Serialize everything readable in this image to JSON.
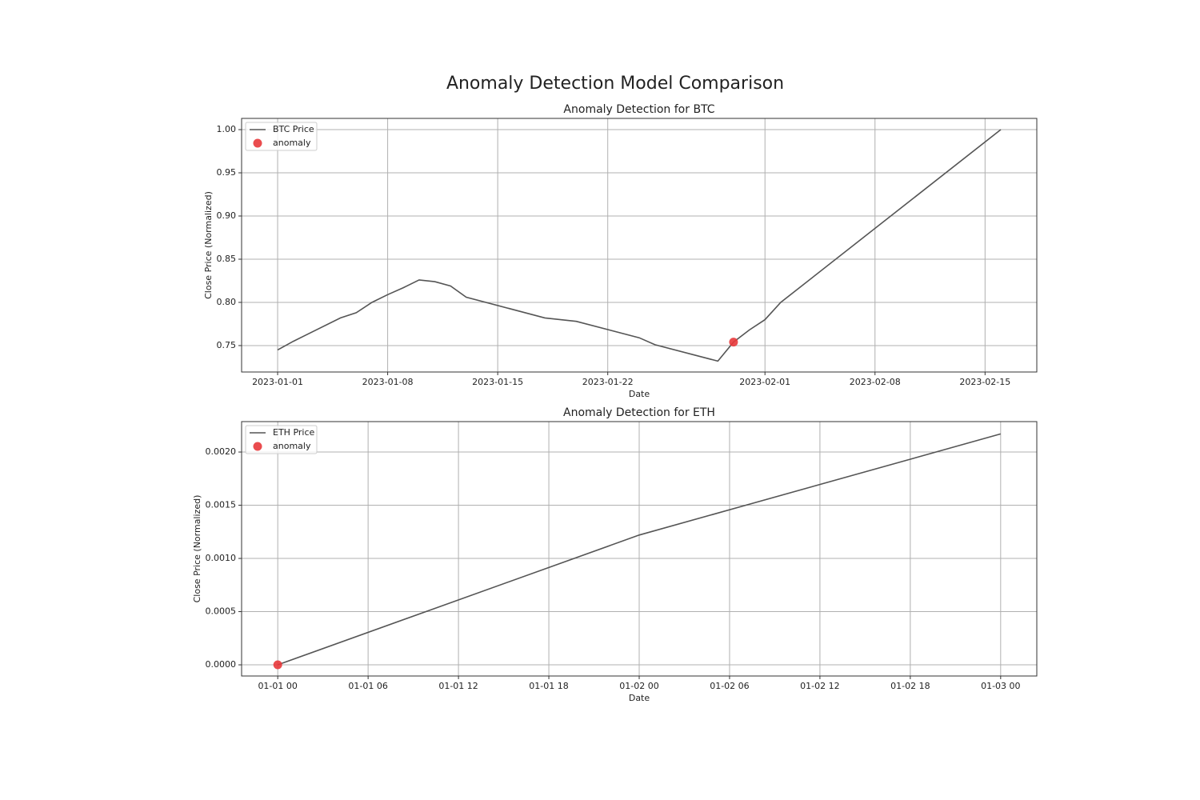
{
  "title": "Anomaly Detection Model Comparison",
  "chart_data": [
    {
      "type": "line",
      "title": "Anomaly Detection for BTC",
      "x_label": "Date",
      "y_label": "Close Price (Normalized)",
      "xlim": [
        "2022-12-29 17:00",
        "2023-02-18 07:00"
      ],
      "xticks": [
        "2023-01-01",
        "2023-01-08",
        "2023-01-15",
        "2023-01-22",
        "2023-02-01",
        "2023-02-08",
        "2023-02-15"
      ],
      "ylim": [
        0.7194,
        1.013
      ],
      "yticks": [
        0.75,
        {
          "value": 0.8,
          "label": "0.80"
        },
        0.85,
        {
          "value": 0.9,
          "label": "0.90"
        },
        0.95,
        {
          "value": 1,
          "label": "1.00"
        }
      ],
      "grid": true,
      "legend": "upper left",
      "series": [
        {
          "name": "BTC Price",
          "type": "line",
          "color": "#555555",
          "x": [
            "2023-01-01",
            "2023-01-02",
            "2023-01-05",
            "2023-01-06",
            "2023-01-07",
            "2023-01-08",
            "2023-01-09",
            "2023-01-10",
            "2023-01-11",
            "2023-01-12",
            "2023-01-13",
            "2023-01-18",
            "2023-01-20",
            "2023-01-24",
            "2023-01-25",
            "2023-01-29",
            "2023-01-30",
            "2023-01-31",
            "2023-02-01",
            "2023-02-02",
            "2023-02-16"
          ],
          "values": [
            0.745,
            0.755,
            0.782,
            0.788,
            0.8,
            0.809,
            0.817,
            0.826,
            0.824,
            0.819,
            0.806,
            0.782,
            0.778,
            0.759,
            0.751,
            0.732,
            0.754,
            0.768,
            0.78,
            0.8,
            1.0
          ]
        },
        {
          "name": "anomaly",
          "type": "scatter",
          "color": "#e8393b",
          "x": [
            "2023-01-30"
          ],
          "values": [
            0.754
          ]
        }
      ]
    },
    {
      "type": "line",
      "title": "Anomaly Detection for ETH",
      "x_label": "Date",
      "y_label": "Close Price (Normalized)",
      "xlim": [
        "12-31 21:36",
        "01-03 02:24"
      ],
      "xticks": [
        "01-01 00",
        "01-01 06",
        "01-01 12",
        "01-01 18",
        "01-02 00",
        "01-02 06",
        "01-02 12",
        "01-02 18",
        "01-03 00"
      ],
      "ylim": [
        -0.000105,
        0.002286
      ],
      "yticks": [
        {
          "value": 0,
          "label": "0.0000"
        },
        {
          "value": 0.0005,
          "label": "0.0005"
        },
        {
          "value": 0.001,
          "label": "0.0010"
        },
        {
          "value": 0.0015,
          "label": "0.0015"
        },
        {
          "value": 0.002,
          "label": "0.0020"
        }
      ],
      "grid": true,
      "legend": "upper left",
      "series": [
        {
          "name": "ETH Price",
          "type": "line",
          "color": "#555555",
          "x": [
            "01-01 00",
            "01-02 00",
            "01-03 00"
          ],
          "values": [
            0,
            0.00122,
            0.00217
          ]
        },
        {
          "name": "anomaly",
          "type": "scatter",
          "color": "#e8393b",
          "x": [
            "01-01 00"
          ],
          "values": [
            0
          ]
        }
      ]
    }
  ]
}
